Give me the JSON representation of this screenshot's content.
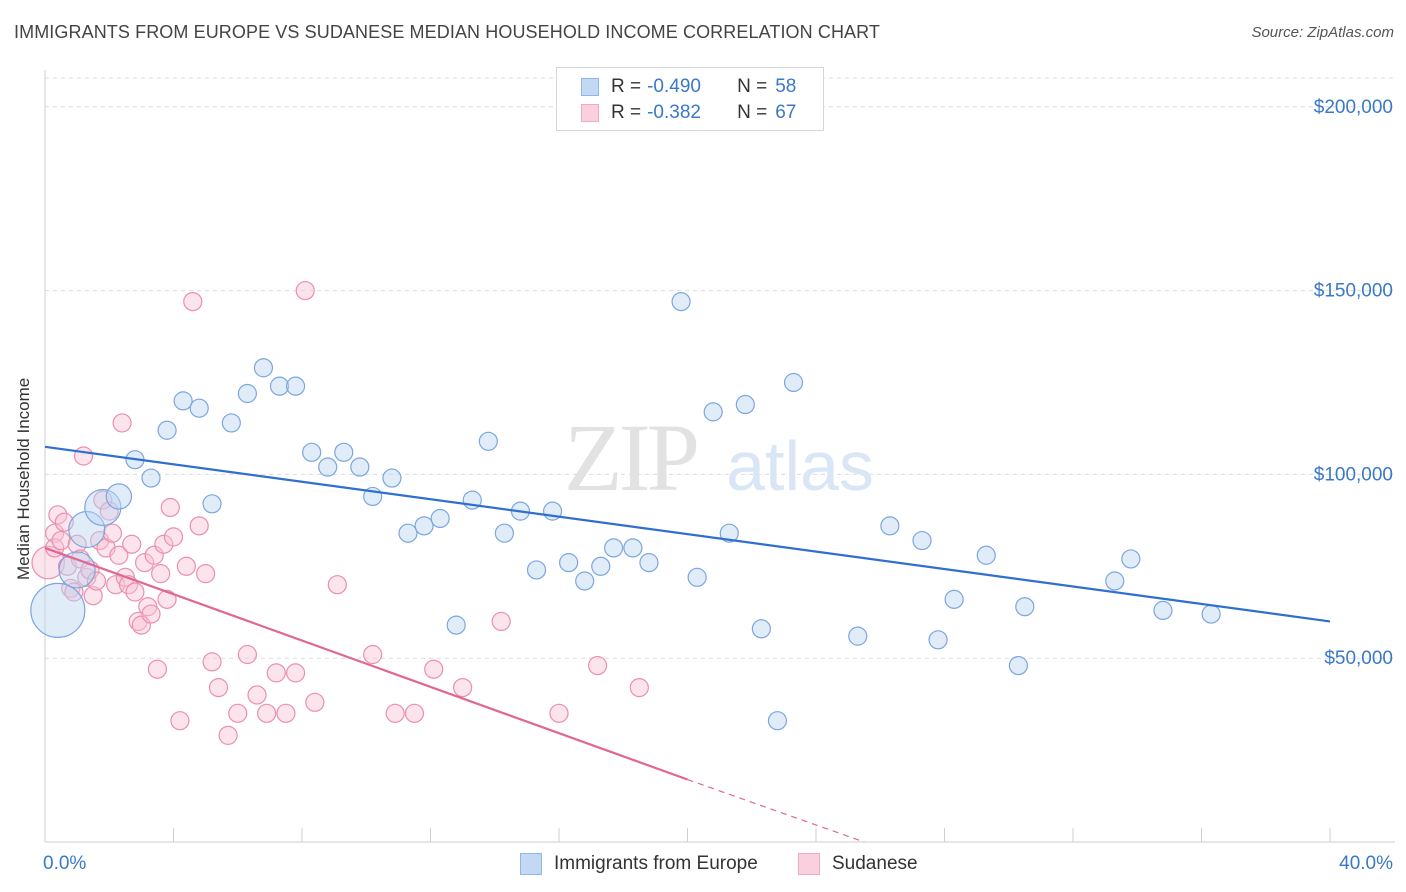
{
  "title": "IMMIGRANTS FROM EUROPE VS SUDANESE MEDIAN HOUSEHOLD INCOME CORRELATION CHART",
  "source": "Source: ZipAtlas.com",
  "watermark": {
    "zip": "ZIP",
    "atlas": "atlas"
  },
  "legend": {
    "r_label": "R =",
    "n_label": "N =",
    "series": [
      {
        "r": "-0.490",
        "n": "58"
      },
      {
        "r": "-0.382",
        "n": "67"
      }
    ]
  },
  "chart_data": {
    "type": "scatter",
    "title": "IMMIGRANTS FROM EUROPE VS SUDANESE MEDIAN HOUSEHOLD INCOME CORRELATION CHART",
    "xlabel": "",
    "ylabel": "Median Household Income",
    "xlim": [
      0,
      40
    ],
    "ylim": [
      0,
      210000
    ],
    "x_tick_labels": [
      "0.0%",
      "40.0%"
    ],
    "y_ticks": [
      50000,
      100000,
      150000,
      200000
    ],
    "y_tick_labels": [
      "$50,000",
      "$100,000",
      "$150,000",
      "$200,000"
    ],
    "legend_position": "top-center",
    "series": [
      {
        "name": "Immigrants from Europe",
        "color": "#8fb7e8",
        "line_color": "#2f6fcf",
        "trend": {
          "x0": 0,
          "y0": 107500,
          "x1": 40,
          "y1": 60000
        },
        "points": [
          [
            0.4,
            63000,
            3
          ],
          [
            1.0,
            74000,
            2
          ],
          [
            1.3,
            85000,
            2
          ],
          [
            1.8,
            91000,
            2
          ],
          [
            2.3,
            94000,
            1.4
          ],
          [
            2.8,
            104000,
            1
          ],
          [
            3.3,
            99000,
            1
          ],
          [
            3.8,
            112000,
            1
          ],
          [
            4.3,
            120000,
            1
          ],
          [
            4.8,
            118000,
            1
          ],
          [
            5.2,
            92000,
            1
          ],
          [
            5.8,
            114000,
            1
          ],
          [
            6.3,
            122000,
            1
          ],
          [
            6.8,
            129000,
            1
          ],
          [
            7.3,
            124000,
            1
          ],
          [
            7.8,
            124000,
            1
          ],
          [
            8.3,
            106000,
            1
          ],
          [
            8.8,
            102000,
            1
          ],
          [
            9.3,
            106000,
            1
          ],
          [
            9.8,
            102000,
            1
          ],
          [
            10.2,
            94000,
            1
          ],
          [
            10.8,
            99000,
            1
          ],
          [
            11.3,
            84000,
            1
          ],
          [
            11.8,
            86000,
            1
          ],
          [
            12.3,
            88000,
            1
          ],
          [
            12.8,
            59000,
            1
          ],
          [
            13.3,
            93000,
            1
          ],
          [
            13.8,
            109000,
            1
          ],
          [
            14.3,
            84000,
            1
          ],
          [
            14.8,
            90000,
            1
          ],
          [
            15.3,
            74000,
            1
          ],
          [
            15.8,
            90000,
            1
          ],
          [
            16.3,
            76000,
            1
          ],
          [
            16.8,
            71000,
            1
          ],
          [
            17.3,
            75000,
            1
          ],
          [
            17.7,
            80000,
            1
          ],
          [
            18.3,
            80000,
            1
          ],
          [
            18.8,
            76000,
            1
          ],
          [
            19.8,
            147000,
            1
          ],
          [
            20.3,
            72000,
            1
          ],
          [
            20.8,
            117000,
            1
          ],
          [
            21.3,
            84000,
            1
          ],
          [
            21.8,
            119000,
            1
          ],
          [
            22.3,
            58000,
            1
          ],
          [
            22.8,
            33000,
            1
          ],
          [
            23.3,
            125000,
            1
          ],
          [
            25.3,
            56000,
            1
          ],
          [
            26.3,
            86000,
            1
          ],
          [
            27.3,
            82000,
            1
          ],
          [
            27.8,
            55000,
            1
          ],
          [
            28.3,
            66000,
            1
          ],
          [
            29.3,
            78000,
            1
          ],
          [
            30.3,
            48000,
            1
          ],
          [
            30.5,
            64000,
            1
          ],
          [
            33.3,
            71000,
            1
          ],
          [
            33.8,
            77000,
            1
          ],
          [
            34.8,
            63000,
            1
          ],
          [
            36.3,
            62000,
            1
          ]
        ]
      },
      {
        "name": "Sudanese",
        "color": "#f4a9c2",
        "line_color": "#e06793",
        "trend": {
          "x0": 0,
          "y0": 80000,
          "x1": 20,
          "y1": 17000
        },
        "trend_dashed_to": {
          "x": 25.5,
          "y": 0
        },
        "points": [
          [
            0.1,
            76000,
            1.8
          ],
          [
            0.3,
            84000,
            1
          ],
          [
            0.3,
            80000,
            1
          ],
          [
            0.4,
            89000,
            1
          ],
          [
            0.5,
            82000,
            1
          ],
          [
            0.6,
            87000,
            1
          ],
          [
            0.7,
            75000,
            1
          ],
          [
            0.8,
            69000,
            1
          ],
          [
            0.9,
            68000,
            1
          ],
          [
            1.0,
            81000,
            1
          ],
          [
            1.1,
            77000,
            1
          ],
          [
            1.2,
            105000,
            1
          ],
          [
            1.3,
            72000,
            1
          ],
          [
            1.4,
            74000,
            1
          ],
          [
            1.5,
            67000,
            1
          ],
          [
            1.6,
            71000,
            1
          ],
          [
            1.7,
            82000,
            1
          ],
          [
            1.8,
            93000,
            1
          ],
          [
            1.9,
            80000,
            1
          ],
          [
            2.0,
            90000,
            1
          ],
          [
            2.1,
            84000,
            1
          ],
          [
            2.2,
            70000,
            1
          ],
          [
            2.3,
            78000,
            1
          ],
          [
            2.4,
            114000,
            1
          ],
          [
            2.5,
            72000,
            1
          ],
          [
            2.6,
            70000,
            1
          ],
          [
            2.7,
            81000,
            1
          ],
          [
            2.8,
            68000,
            1
          ],
          [
            2.9,
            60000,
            1
          ],
          [
            3.0,
            59000,
            1
          ],
          [
            3.1,
            76000,
            1
          ],
          [
            3.2,
            64000,
            1
          ],
          [
            3.3,
            62000,
            1
          ],
          [
            3.4,
            78000,
            1
          ],
          [
            3.5,
            47000,
            1
          ],
          [
            3.6,
            73000,
            1
          ],
          [
            3.7,
            81000,
            1
          ],
          [
            3.8,
            66000,
            1
          ],
          [
            3.9,
            91000,
            1
          ],
          [
            4.0,
            83000,
            1
          ],
          [
            4.2,
            33000,
            1
          ],
          [
            4.4,
            75000,
            1
          ],
          [
            4.6,
            147000,
            1
          ],
          [
            4.8,
            86000,
            1
          ],
          [
            5.0,
            73000,
            1
          ],
          [
            5.2,
            49000,
            1
          ],
          [
            5.4,
            42000,
            1
          ],
          [
            5.7,
            29000,
            1
          ],
          [
            6.0,
            35000,
            1
          ],
          [
            6.3,
            51000,
            1
          ],
          [
            6.6,
            40000,
            1
          ],
          [
            6.9,
            35000,
            1
          ],
          [
            7.2,
            46000,
            1
          ],
          [
            7.5,
            35000,
            1
          ],
          [
            7.8,
            46000,
            1
          ],
          [
            8.1,
            150000,
            1
          ],
          [
            8.4,
            38000,
            1
          ],
          [
            9.1,
            70000,
            1
          ],
          [
            10.2,
            51000,
            1
          ],
          [
            10.9,
            35000,
            1
          ],
          [
            11.5,
            35000,
            1
          ],
          [
            12.1,
            47000,
            1
          ],
          [
            13.0,
            42000,
            1
          ],
          [
            14.2,
            60000,
            1
          ],
          [
            16.0,
            35000,
            1
          ],
          [
            17.2,
            48000,
            1
          ],
          [
            18.5,
            42000,
            1
          ]
        ]
      }
    ]
  }
}
